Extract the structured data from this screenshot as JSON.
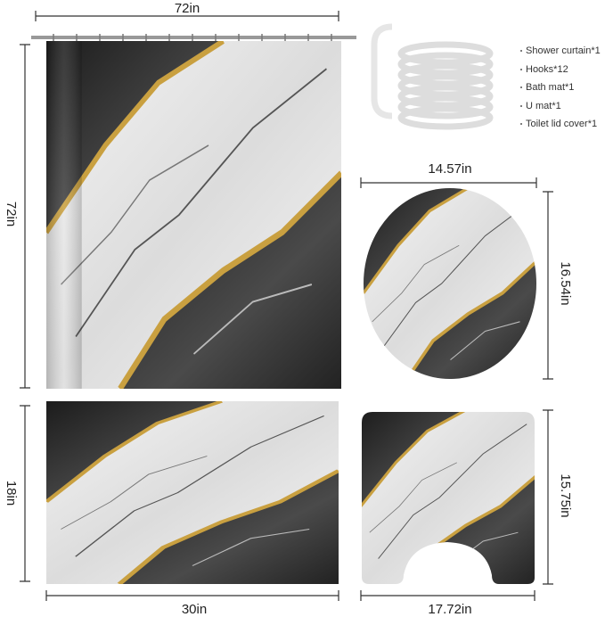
{
  "shower_curtain": {
    "width": "72in",
    "height": "72in"
  },
  "contents": [
    "Shower curtain*1",
    "Hooks*12",
    "Bath mat*1",
    "U mat*1",
    "Toilet lid cover*1"
  ],
  "toilet_lid_cover": {
    "width": "14.57in",
    "height": "16.54in"
  },
  "bath_mat": {
    "height": "18in",
    "width": "30in"
  },
  "u_mat": {
    "height": "15.75in",
    "width": "17.72in"
  }
}
